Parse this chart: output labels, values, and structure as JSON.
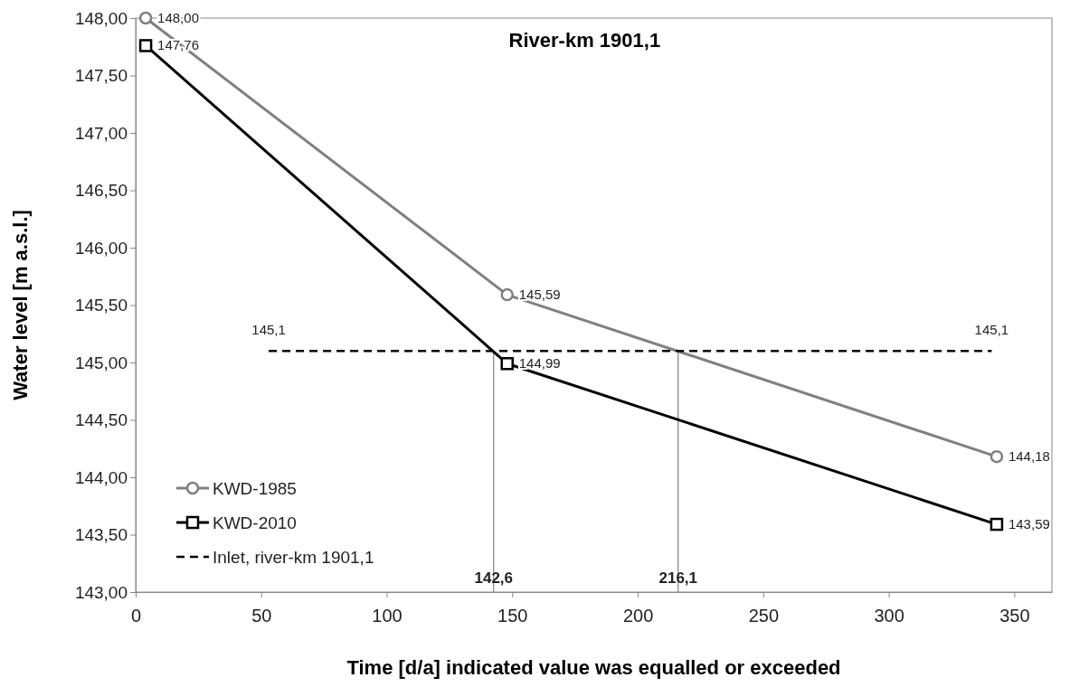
{
  "chart_data": {
    "type": "line",
    "title": "River-km 1901,1",
    "xlabel": "Time [d/a] indicated value was equalled or exceeded",
    "ylabel": "Water level [m a.s.l.]",
    "xlim": [
      0,
      365
    ],
    "xticks": [
      0,
      50,
      100,
      150,
      200,
      250,
      300,
      350
    ],
    "ylim": [
      143,
      148
    ],
    "yticks": [
      {
        "value": 143,
        "label": "143,00"
      },
      {
        "value": 143.5,
        "label": "143,50"
      },
      {
        "value": 144,
        "label": "144,00"
      },
      {
        "value": 144.5,
        "label": "144,50"
      },
      {
        "value": 145,
        "label": "145,00"
      },
      {
        "value": 145.5,
        "label": "145,50"
      },
      {
        "value": 146,
        "label": "146,00"
      },
      {
        "value": 146.5,
        "label": "146,50"
      },
      {
        "value": 147,
        "label": "147,00"
      },
      {
        "value": 147.5,
        "label": "147,50"
      },
      {
        "value": 148,
        "label": "148,00"
      }
    ],
    "grid": false,
    "legend": "bottom left",
    "series": [
      {
        "name": "KWD-1985",
        "color": "#808080",
        "marker": "circle",
        "line_style": "solid",
        "x": [
          4,
          148,
          343
        ],
        "values": [
          148.0,
          145.59,
          144.18
        ],
        "value_labels": [
          "148,00",
          "145,59",
          "144,18"
        ]
      },
      {
        "name": "KWD-2010",
        "color": "#000000",
        "marker": "square",
        "line_style": "solid",
        "x": [
          4,
          148,
          343
        ],
        "values": [
          147.76,
          144.99,
          143.59
        ],
        "value_labels": [
          "147,76",
          "144,99",
          "143,59"
        ]
      },
      {
        "name": "Inlet, river-km 1901,1",
        "color": "#000000",
        "marker": "none",
        "line_style": "dashed",
        "x": [
          53,
          341
        ],
        "values": [
          145.1,
          145.1
        ],
        "value_labels": [
          "145,1",
          "145,1"
        ]
      },
      {
        "color": "#808080",
        "marker": "none",
        "line_style": "solid",
        "x": [
          142.6,
          142.6
        ],
        "values": [
          143,
          145.1
        ]
      },
      {
        "color": "#808080",
        "marker": "none",
        "line_style": "solid",
        "x": [
          216.1,
          216.1
        ],
        "values": [
          143,
          145.1
        ]
      }
    ],
    "annotations": [
      {
        "text": "142,6",
        "x": 142.6,
        "y": 143
      },
      {
        "text": "216,1",
        "x": 216.1,
        "y": 143
      }
    ]
  }
}
